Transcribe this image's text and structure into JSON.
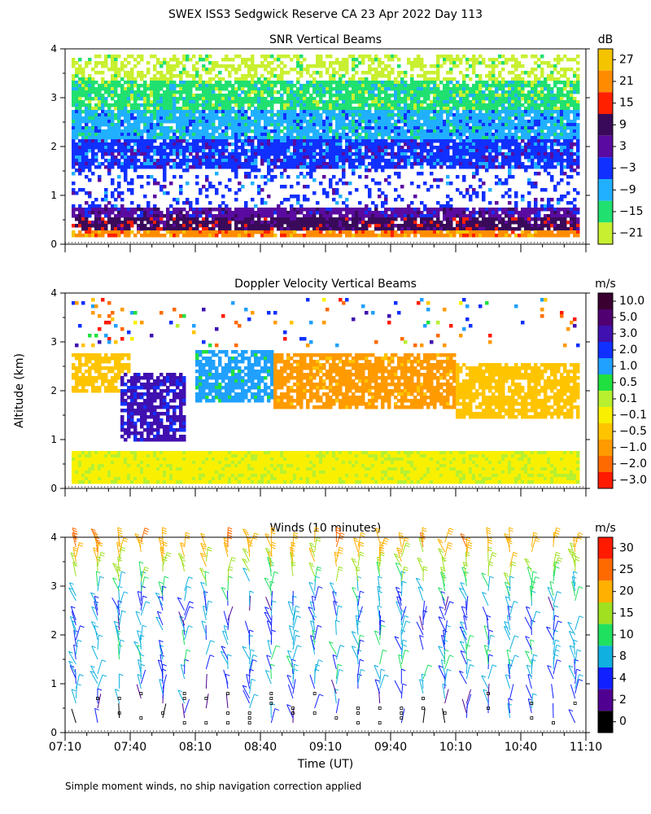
{
  "page": {
    "title": "SWEX ISS3 Sedgwick Reserve CA  23 Apr 2022 Day 113",
    "shared_ylabel": "Altitude (km)",
    "xlabel": "Time (UT)",
    "footnote": "Simple moment winds, no ship navigation correction applied"
  },
  "x_ticks": [
    "07:10",
    "07:40",
    "08:10",
    "08:40",
    "09:10",
    "09:40",
    "10:10",
    "10:40",
    "11:10"
  ],
  "y_ticks": [
    "0",
    "1",
    "2",
    "3",
    "4"
  ],
  "chart_data": [
    {
      "type": "heatmap",
      "title": "SNR Vertical Beams",
      "colorbar_unit": "dB",
      "colorbar_labels": [
        "27",
        "21",
        "15",
        "9",
        "3",
        "−3",
        "−9",
        "−15",
        "−21"
      ],
      "colors": [
        "#f5c400",
        "#ff8c00",
        "#ff2000",
        "#3a0a5a",
        "#5a0aa0",
        "#1030ff",
        "#20b0ff",
        "#20e070",
        "#c8f030"
      ],
      "xlim": [
        "07:10",
        "11:10"
      ],
      "ylim": [
        0,
        4
      ],
      "bands": [
        {
          "y0": 0.15,
          "y1": 0.3,
          "value": 21
        },
        {
          "y0": 0.3,
          "y1": 0.6,
          "value": 9
        },
        {
          "y0": 0.6,
          "y1": 0.8,
          "value": 3
        },
        {
          "y0": 1.6,
          "y1": 2.2,
          "value": -3
        },
        {
          "y0": 2.2,
          "y1": 2.8,
          "value": -9
        },
        {
          "y0": 2.8,
          "y1": 3.4,
          "value": -15
        },
        {
          "y0": 3.4,
          "y1": 3.9,
          "value": -21
        }
      ]
    },
    {
      "type": "heatmap",
      "title": "Doppler Velocity Vertical Beams",
      "colorbar_unit": "m/s",
      "colorbar_labels": [
        "10.0",
        "5.0",
        "3.0",
        "2.0",
        "1.0",
        "0.5",
        "0.1",
        "−0.1",
        "−0.5",
        "−1.0",
        "−2.0",
        "−3.0"
      ],
      "colors": [
        "#3a0030",
        "#500070",
        "#4010b0",
        "#1030ff",
        "#20a0ff",
        "#20e040",
        "#b8f030",
        "#f8f000",
        "#ffc400",
        "#ff9a00",
        "#ff6a00",
        "#ff1a00"
      ],
      "xlim": [
        "07:10",
        "11:10"
      ],
      "ylim": [
        0,
        4
      ],
      "regions": [
        {
          "t0": "07:10",
          "t1": "11:10",
          "y0": 0.1,
          "y1": 0.8,
          "value": -0.1
        },
        {
          "t0": "07:10",
          "t1": "07:40",
          "y0": 2.0,
          "y1": 2.8,
          "value": -0.5
        },
        {
          "t0": "07:35",
          "t1": "08:05",
          "y0": 1.0,
          "y1": 2.4,
          "value": 3.0
        },
        {
          "t0": "08:10",
          "t1": "08:45",
          "y0": 1.8,
          "y1": 2.9,
          "value": 1.0
        },
        {
          "t0": "08:45",
          "t1": "10:10",
          "y0": 1.7,
          "y1": 2.8,
          "value": -1.0
        },
        {
          "t0": "10:10",
          "t1": "11:10",
          "y0": 1.5,
          "y1": 2.6,
          "value": -0.5
        }
      ]
    },
    {
      "type": "scatter",
      "title": "Winds (10 minutes)",
      "colorbar_unit": "m/s",
      "colorbar_labels": [
        "30",
        "25",
        "20",
        "15",
        "10",
        "8",
        "4",
        "2",
        "0"
      ],
      "colors": [
        "#ff1a00",
        "#ff6a00",
        "#ffb000",
        "#a0e020",
        "#20e060",
        "#10b0e0",
        "#1020ff",
        "#500090",
        "#000000"
      ],
      "xlim": [
        "07:10",
        "11:10"
      ],
      "ylim": [
        0,
        4
      ],
      "profile_times": [
        "07:15",
        "07:25",
        "07:35",
        "07:45",
        "07:55",
        "08:05",
        "08:15",
        "08:25",
        "08:35",
        "08:45",
        "08:55",
        "09:05",
        "09:15",
        "09:25",
        "09:35",
        "09:45",
        "09:55",
        "10:05",
        "10:15",
        "10:25",
        "10:35",
        "10:45",
        "10:55",
        "11:05"
      ],
      "wind_speed_by_altitude": [
        {
          "altitude": 0.5,
          "speed": 4
        },
        {
          "altitude": 1.0,
          "speed": 6
        },
        {
          "altitude": 1.5,
          "speed": 8
        },
        {
          "altitude": 2.0,
          "speed": 6
        },
        {
          "altitude": 2.5,
          "speed": 5
        },
        {
          "altitude": 3.0,
          "speed": 10
        },
        {
          "altitude": 3.5,
          "speed": 18
        },
        {
          "altitude": 4.0,
          "speed": 22
        }
      ]
    }
  ]
}
